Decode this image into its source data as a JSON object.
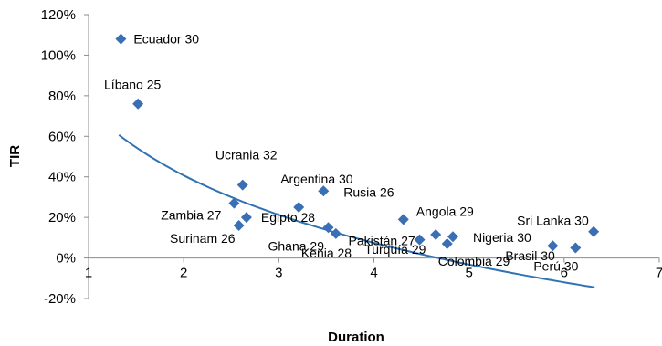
{
  "chart_data": {
    "type": "scatter",
    "title": "",
    "xlabel": "Duration",
    "ylabel": "TIR",
    "xlim": [
      1,
      7
    ],
    "ylim": [
      -0.2,
      1.2
    ],
    "x_ticks": [
      "1",
      "2",
      "3",
      "4",
      "5",
      "6",
      "7"
    ],
    "y_ticks": [
      "-20%",
      "0%",
      "20%",
      "40%",
      "60%",
      "80%",
      "100%",
      "120%"
    ],
    "grid": false,
    "legend": "none",
    "marker_color": "#3a6fb5",
    "trendline": {
      "type": "logarithmic",
      "color": "#2f73b5",
      "a": 0.74,
      "b": -0.48
    },
    "points": [
      {
        "label": "Ecuador 30",
        "x": 1.34,
        "y": 1.08
      },
      {
        "label": "Líbano 25",
        "x": 1.52,
        "y": 0.76
      },
      {
        "label": "Ucrania 32",
        "x": 2.62,
        "y": 0.36
      },
      {
        "label": "Zambia 27",
        "x": 2.53,
        "y": 0.27
      },
      {
        "label": "Surinam 26",
        "x": 2.58,
        "y": 0.16
      },
      {
        "label": "Egipto 28",
        "x": 2.66,
        "y": 0.2
      },
      {
        "label": "Argentina 30",
        "x": 3.21,
        "y": 0.25
      },
      {
        "label": "Rusia 26",
        "x": 3.47,
        "y": 0.33
      },
      {
        "label": "Ghana 29",
        "x": 3.52,
        "y": 0.15
      },
      {
        "label": "Kenia 28",
        "x": 3.6,
        "y": 0.12
      },
      {
        "label": "Angola 29",
        "x": 4.31,
        "y": 0.19
      },
      {
        "label": "Pakistán 27",
        "x": 4.48,
        "y": 0.09
      },
      {
        "label": "Turquía 29",
        "x": 4.65,
        "y": 0.115
      },
      {
        "label": "Colombia 29",
        "x": 4.77,
        "y": 0.07
      },
      {
        "label": "Nigeria 30",
        "x": 4.83,
        "y": 0.105
      },
      {
        "label": "Sri Lanka 30",
        "x": 6.31,
        "y": 0.13
      },
      {
        "label": "Brasil 30",
        "x": 5.88,
        "y": 0.06
      },
      {
        "label": "Perú 30",
        "x": 6.12,
        "y": 0.05
      }
    ]
  }
}
